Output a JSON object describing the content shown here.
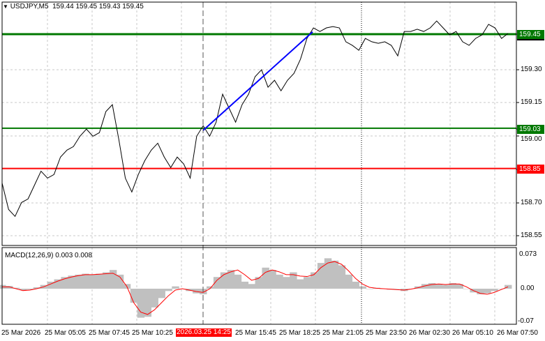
{
  "header": {
    "symbol": "USDJPY,M5",
    "open": "159.44",
    "high": "159.45",
    "low": "159.43",
    "close": "159.45"
  },
  "colors": {
    "price": "#000000",
    "level_green": "#007800",
    "level_red": "#ff0000",
    "trend": "#0000ff",
    "hist": "#c0c0c0",
    "signal": "#ff0000"
  },
  "price_axis": [
    "159.30",
    "159.15",
    "159.00",
    "158.70",
    "158.55"
  ],
  "levels": [
    {
      "label": "159.45",
      "value": 159.45,
      "color": "#007800"
    },
    {
      "label": "159.03",
      "value": 159.03,
      "color": "#007800"
    },
    {
      "label": "158.85",
      "value": 158.85,
      "color": "#ff0000"
    }
  ],
  "macd": {
    "title": "MACD(12,26,9) 0.003 0.008",
    "axis": [
      "0.073",
      "0.00",
      "-0.07"
    ]
  },
  "time_axis": [
    "25 Mar 2026",
    "25 Mar 05:05",
    "25 Mar 07:45",
    "25 Mar 10:25",
    "25 Mar 15:45",
    "25 Mar 18:25",
    "25 Mar 21:05",
    "25 Mar 23:50",
    "26 Mar 02:30",
    "26 Mar 05:10",
    "26 Mar 07:50"
  ],
  "crosshair_time": "2026.03.25 14:25",
  "chart_data": {
    "type": "line",
    "title": "USDJPY,M5",
    "ylim": [
      158.5,
      159.55
    ],
    "price": [
      158.785,
      158.667,
      158.636,
      158.698,
      158.714,
      158.776,
      158.838,
      158.807,
      158.823,
      158.901,
      158.932,
      158.948,
      158.994,
      159.026,
      158.994,
      159.01,
      159.104,
      159.135,
      158.979,
      158.807,
      158.745,
      158.823,
      158.885,
      158.932,
      158.963,
      158.901,
      158.854,
      158.901,
      158.87,
      158.807,
      158.994,
      159.041,
      158.994,
      159.057,
      159.182,
      159.119,
      159.057,
      159.135,
      159.182,
      159.26,
      159.291,
      159.213,
      159.244,
      159.197,
      159.244,
      159.275,
      159.338,
      159.431,
      159.478,
      159.462,
      159.478,
      159.484,
      159.478,
      159.416,
      159.4,
      159.378,
      159.431,
      159.416,
      159.409,
      159.416,
      159.4,
      159.353,
      159.462,
      159.462,
      159.472,
      159.462,
      159.478,
      159.509,
      159.478,
      159.447,
      159.462,
      159.416,
      159.4,
      159.431,
      159.447,
      159.494,
      159.478,
      159.431,
      159.453
    ],
    "trendline": {
      "from": 159.02,
      "to": 159.46
    },
    "macd_hist": [
      0.008,
      0.006,
      0.002,
      -0.003,
      -0.002,
      0.003,
      0.008,
      0.015,
      0.02,
      0.025,
      0.028,
      0.03,
      0.032,
      0.03,
      0.032,
      0.035,
      0.04,
      0.03,
      0.01,
      -0.03,
      -0.062,
      -0.06,
      -0.04,
      -0.02,
      -0.005,
      0.005,
      0.0,
      -0.005,
      -0.01,
      -0.012,
      0.005,
      0.025,
      0.035,
      0.04,
      0.03,
      0.015,
      0.01,
      0.025,
      0.045,
      0.04,
      0.03,
      0.025,
      0.035,
      0.02,
      0.025,
      0.035,
      0.055,
      0.065,
      0.06,
      0.05,
      0.03,
      0.015,
      0.005,
      0.0,
      0.002,
      0.0,
      -0.002,
      0.0,
      -0.005,
      0.0,
      0.005,
      0.01,
      0.012,
      0.01,
      0.008,
      0.012,
      0.01,
      0.0,
      -0.008,
      -0.012,
      -0.01,
      -0.005,
      0.0,
      0.008
    ],
    "macd_signal": [
      0.004,
      0.004,
      0.0,
      -0.004,
      -0.003,
      0.0,
      0.004,
      0.01,
      0.016,
      0.021,
      0.025,
      0.028,
      0.03,
      0.03,
      0.031,
      0.032,
      0.033,
      0.025,
      0.005,
      -0.03,
      -0.05,
      -0.055,
      -0.045,
      -0.03,
      -0.015,
      -0.003,
      0.0,
      -0.003,
      -0.006,
      -0.008,
      0.0,
      0.018,
      0.03,
      0.036,
      0.04,
      0.03,
      0.018,
      0.022,
      0.035,
      0.04,
      0.036,
      0.03,
      0.03,
      0.027,
      0.026,
      0.03,
      0.045,
      0.055,
      0.058,
      0.052,
      0.038,
      0.022,
      0.01,
      0.003,
      0.001,
      0.0,
      -0.001,
      -0.002,
      -0.003,
      -0.001,
      0.002,
      0.006,
      0.009,
      0.01,
      0.009,
      0.01,
      0.01,
      0.004,
      -0.004,
      -0.01,
      -0.012,
      -0.008,
      -0.002,
      0.004
    ]
  }
}
